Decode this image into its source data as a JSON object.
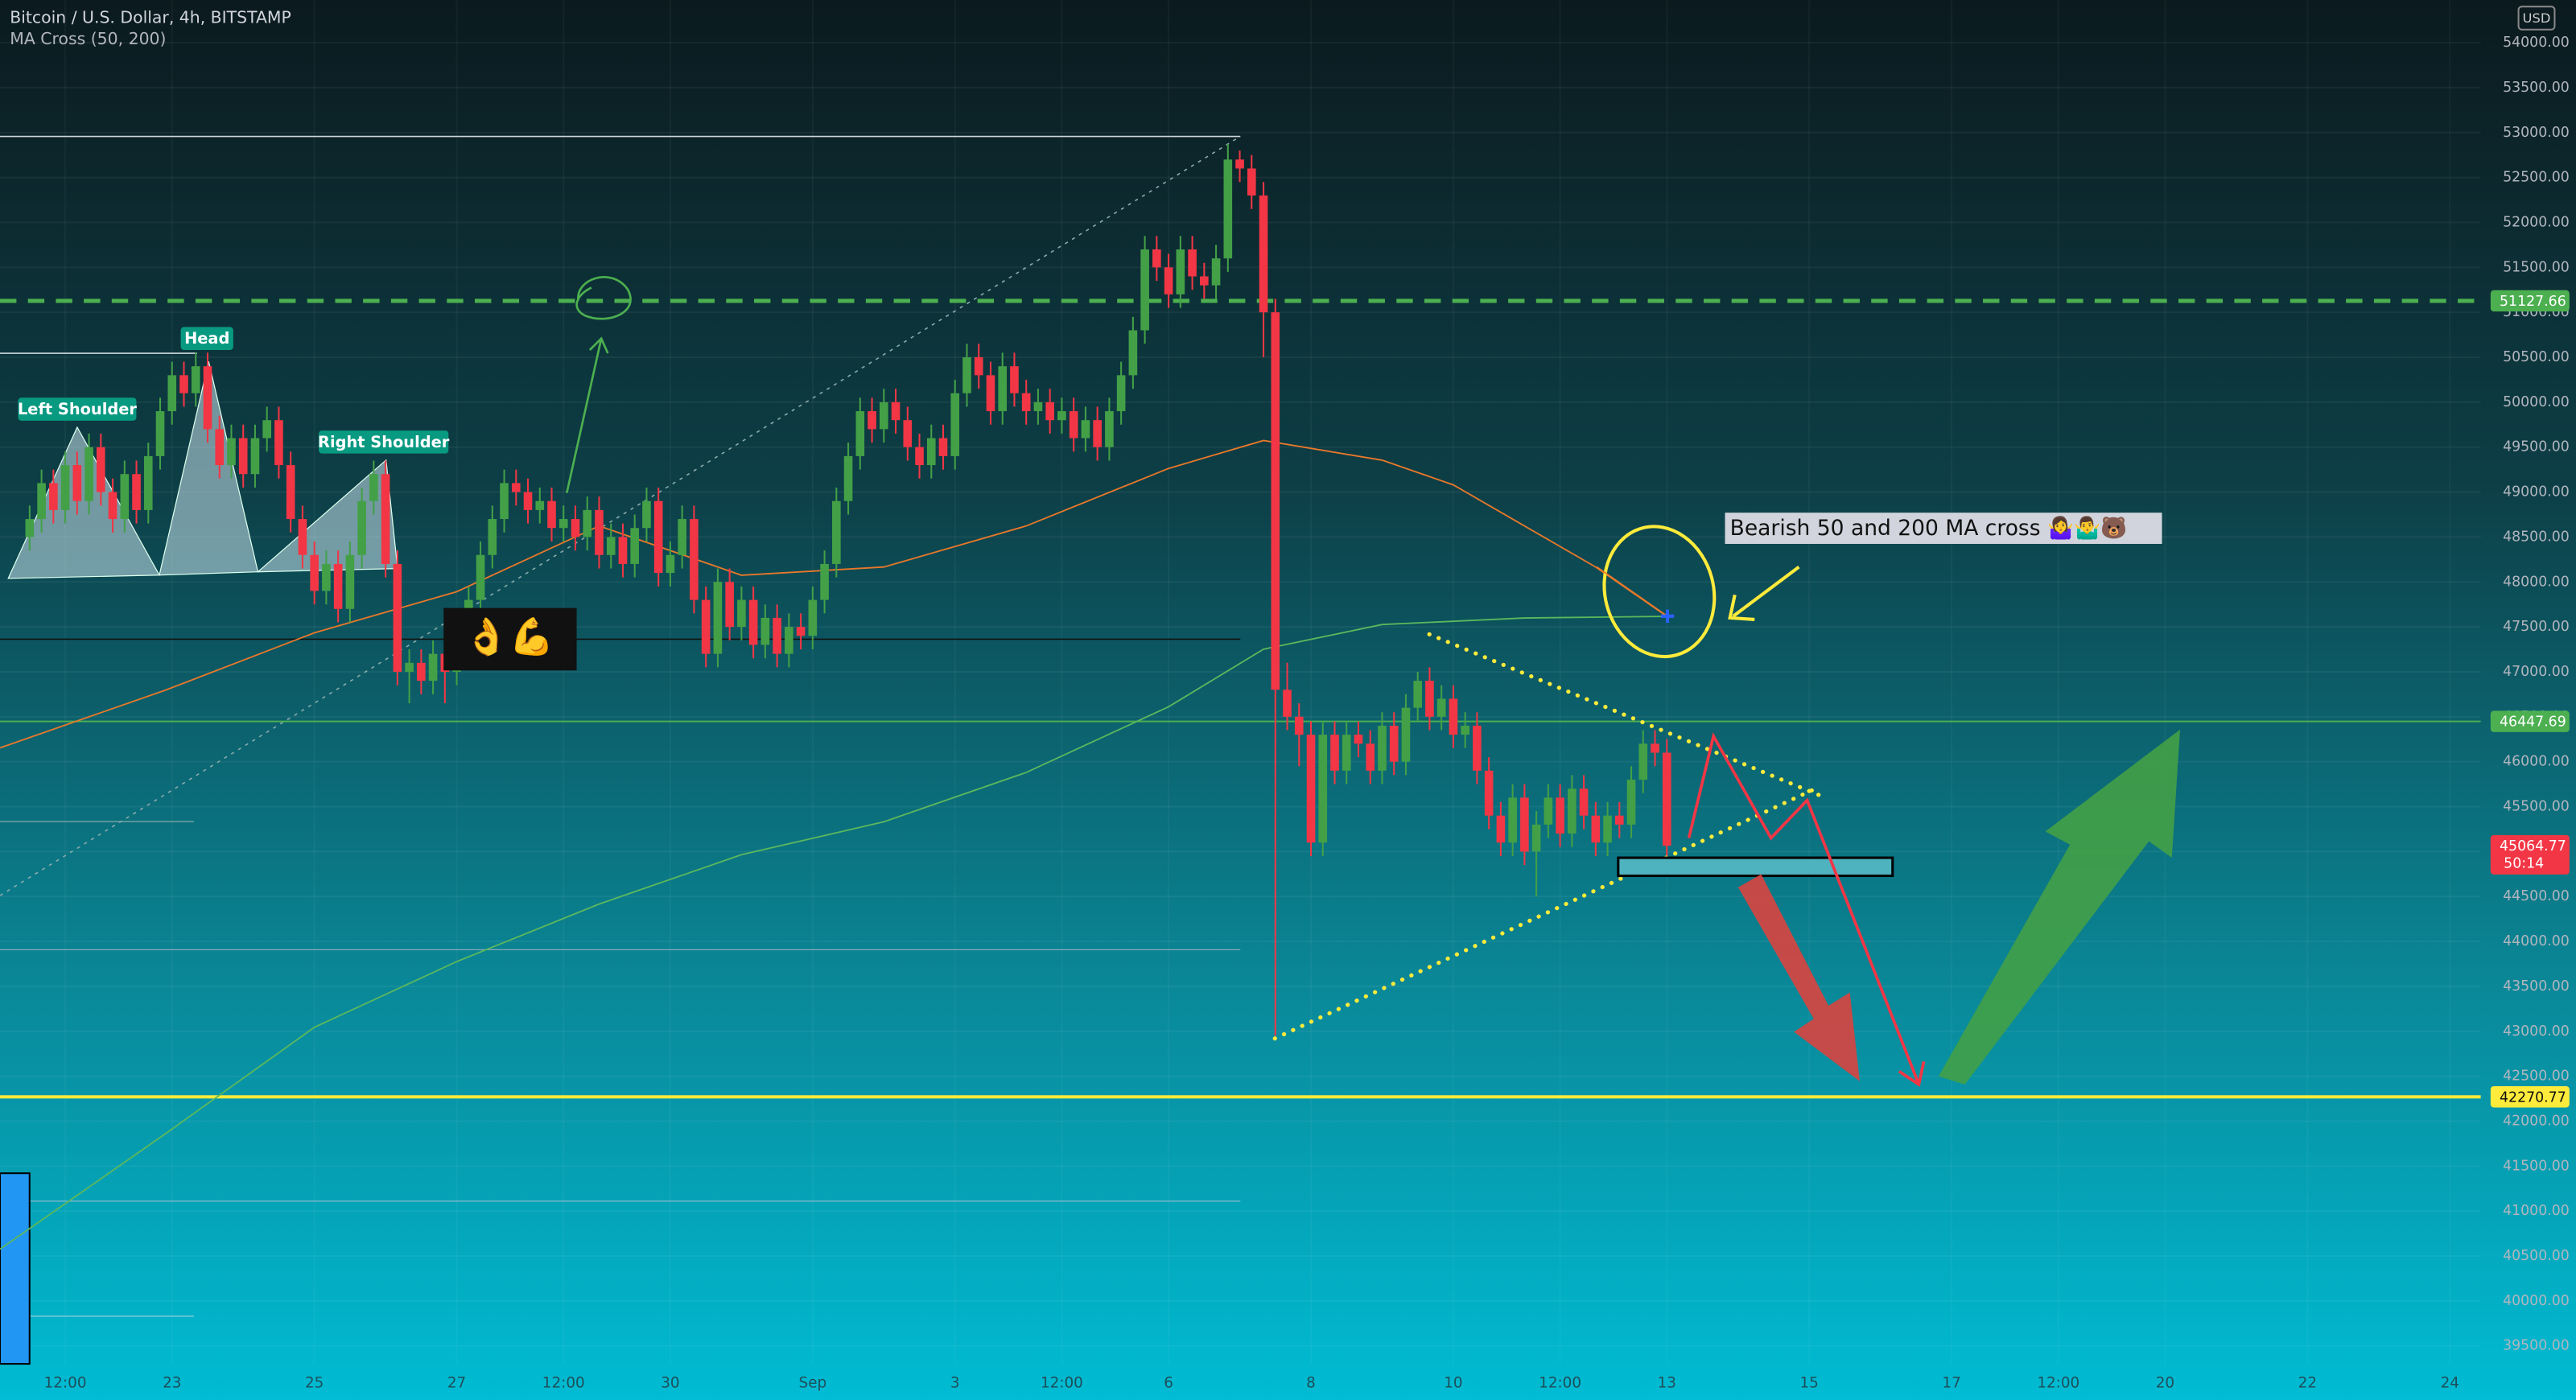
{
  "chart_data": {
    "type": "candlestick",
    "title": "Bitcoin / U.S. Dollar, 4h, BITSTAMP",
    "subtitle": "MA Cross (50, 200)",
    "currency": "USD",
    "countdown": "50:14",
    "up_color": "#43a047",
    "down_color": "#f23645",
    "candles": [
      [
        48500,
        48850,
        48350,
        48700
      ],
      [
        48700,
        49250,
        48550,
        49100
      ],
      [
        49100,
        49250,
        48650,
        48800
      ],
      [
        48800,
        49450,
        48650,
        49300
      ],
      [
        49300,
        49450,
        48750,
        48900
      ],
      [
        48900,
        49650,
        48750,
        49500
      ],
      [
        49500,
        49650,
        48850,
        49000
      ],
      [
        49000,
        49150,
        48550,
        48700
      ],
      [
        48700,
        49350,
        48550,
        49200
      ],
      [
        49200,
        49350,
        48650,
        48800
      ],
      [
        48800,
        49550,
        48650,
        49400
      ],
      [
        49400,
        50050,
        49250,
        49900
      ],
      [
        49900,
        50450,
        49750,
        50300
      ],
      [
        50300,
        50450,
        49950,
        50100
      ],
      [
        50100,
        50550,
        49950,
        50400
      ],
      [
        50400,
        50550,
        49550,
        49700
      ],
      [
        49700,
        49850,
        49150,
        49300
      ],
      [
        49300,
        49750,
        49150,
        49600
      ],
      [
        49600,
        49750,
        49050,
        49200
      ],
      [
        49200,
        49750,
        49050,
        49600
      ],
      [
        49600,
        49950,
        49450,
        49800
      ],
      [
        49800,
        49950,
        49150,
        49300
      ],
      [
        49300,
        49450,
        48550,
        48700
      ],
      [
        48700,
        48850,
        48150,
        48300
      ],
      [
        48300,
        48450,
        47750,
        47900
      ],
      [
        47900,
        48350,
        47750,
        48200
      ],
      [
        48200,
        48350,
        47550,
        47700
      ],
      [
        47700,
        48450,
        47550,
        48300
      ],
      [
        48300,
        49050,
        48150,
        48900
      ],
      [
        48900,
        49350,
        48750,
        49200
      ],
      [
        49200,
        49350,
        48050,
        48200
      ],
      [
        48200,
        48350,
        46850,
        47000
      ],
      [
        47000,
        47250,
        46650,
        47100
      ],
      [
        47100,
        47250,
        46750,
        46900
      ],
      [
        46900,
        47350,
        46750,
        47200
      ],
      [
        47200,
        47350,
        46650,
        47000
      ],
      [
        47000,
        47550,
        46850,
        47400
      ],
      [
        47400,
        47950,
        47250,
        47800
      ],
      [
        47800,
        48450,
        47650,
        48300
      ],
      [
        48300,
        48850,
        48150,
        48700
      ],
      [
        48700,
        49250,
        48550,
        49100
      ],
      [
        49100,
        49250,
        48850,
        49000
      ],
      [
        49000,
        49150,
        48650,
        48800
      ],
      [
        48800,
        49050,
        48650,
        48900
      ],
      [
        48900,
        49050,
        48450,
        48600
      ],
      [
        48600,
        48850,
        48450,
        48700
      ],
      [
        48700,
        48850,
        48350,
        48500
      ],
      [
        48500,
        48950,
        48350,
        48800
      ],
      [
        48800,
        48950,
        48150,
        48300
      ],
      [
        48300,
        48650,
        48150,
        48500
      ],
      [
        48500,
        48650,
        48050,
        48200
      ],
      [
        48200,
        48750,
        48050,
        48600
      ],
      [
        48600,
        49050,
        48450,
        48900
      ],
      [
        48900,
        49050,
        47950,
        48100
      ],
      [
        48100,
        48450,
        47950,
        48300
      ],
      [
        48300,
        48850,
        48150,
        48700
      ],
      [
        48700,
        48850,
        47650,
        47800
      ],
      [
        47800,
        47950,
        47050,
        47200
      ],
      [
        47200,
        48150,
        47050,
        48000
      ],
      [
        48000,
        48150,
        47350,
        47500
      ],
      [
        47500,
        47950,
        47350,
        47800
      ],
      [
        47800,
        47950,
        47150,
        47300
      ],
      [
        47300,
        47750,
        47150,
        47600
      ],
      [
        47600,
        47750,
        47050,
        47200
      ],
      [
        47200,
        47650,
        47050,
        47500
      ],
      [
        47500,
        47650,
        47250,
        47400
      ],
      [
        47400,
        47950,
        47250,
        47800
      ],
      [
        47800,
        48350,
        47650,
        48200
      ],
      [
        48200,
        49050,
        48050,
        48900
      ],
      [
        48900,
        49550,
        48750,
        49400
      ],
      [
        49400,
        50050,
        49250,
        49900
      ],
      [
        49900,
        50050,
        49550,
        49700
      ],
      [
        49700,
        50150,
        49550,
        50000
      ],
      [
        50000,
        50150,
        49650,
        49800
      ],
      [
        49800,
        49950,
        49350,
        49500
      ],
      [
        49500,
        49650,
        49150,
        49300
      ],
      [
        49300,
        49750,
        49150,
        49600
      ],
      [
        49600,
        49750,
        49250,
        49400
      ],
      [
        49400,
        50250,
        49250,
        50100
      ],
      [
        50100,
        50650,
        49950,
        50500
      ],
      [
        50500,
        50650,
        50150,
        50300
      ],
      [
        50300,
        50450,
        49750,
        49900
      ],
      [
        49900,
        50550,
        49750,
        50400
      ],
      [
        50400,
        50550,
        49950,
        50100
      ],
      [
        50100,
        50250,
        49750,
        49900
      ],
      [
        49900,
        50150,
        49750,
        50000
      ],
      [
        50000,
        50150,
        49650,
        49800
      ],
      [
        49800,
        50050,
        49650,
        49900
      ],
      [
        49900,
        50050,
        49450,
        49600
      ],
      [
        49600,
        49950,
        49450,
        49800
      ],
      [
        49800,
        49950,
        49350,
        49500
      ],
      [
        49500,
        50050,
        49350,
        49900
      ],
      [
        49900,
        50450,
        49750,
        50300
      ],
      [
        50300,
        50950,
        50150,
        50800
      ],
      [
        50800,
        51850,
        50650,
        51700
      ],
      [
        51700,
        51850,
        51350,
        51500
      ],
      [
        51500,
        51650,
        51050,
        51200
      ],
      [
        51200,
        51850,
        51050,
        51700
      ],
      [
        51700,
        51850,
        51250,
        51400
      ],
      [
        51400,
        51550,
        51150,
        51300
      ],
      [
        51300,
        51750,
        51150,
        51600
      ],
      [
        51600,
        52870,
        51450,
        52700
      ],
      [
        52700,
        52800,
        52450,
        52600
      ],
      [
        52600,
        52750,
        52150,
        52300
      ],
      [
        52300,
        52450,
        50500,
        51000
      ],
      [
        51000,
        51150,
        42950,
        46800
      ],
      [
        46800,
        47100,
        46350,
        46500
      ],
      [
        46500,
        46650,
        45950,
        46300
      ],
      [
        46300,
        46450,
        44950,
        45100
      ],
      [
        45100,
        46450,
        44950,
        46300
      ],
      [
        46300,
        46450,
        45750,
        45900
      ],
      [
        45900,
        46450,
        45750,
        46300
      ],
      [
        46300,
        46450,
        46050,
        46200
      ],
      [
        46200,
        46350,
        45750,
        45900
      ],
      [
        45900,
        46550,
        45750,
        46400
      ],
      [
        46400,
        46550,
        45850,
        46000
      ],
      [
        46000,
        46750,
        45850,
        46600
      ],
      [
        46600,
        47000,
        46450,
        46900
      ],
      [
        46900,
        47050,
        46350,
        46500
      ],
      [
        46500,
        46850,
        46350,
        46700
      ],
      [
        46700,
        46850,
        46150,
        46300
      ],
      [
        46300,
        46550,
        46150,
        46400
      ],
      [
        46400,
        46550,
        45750,
        45900
      ],
      [
        45900,
        46050,
        45250,
        45400
      ],
      [
        45400,
        45550,
        44950,
        45100
      ],
      [
        45100,
        45750,
        44950,
        45600
      ],
      [
        45600,
        45750,
        44850,
        45000
      ],
      [
        45000,
        45450,
        44500,
        45300
      ],
      [
        45300,
        45750,
        45150,
        45600
      ],
      [
        45600,
        45750,
        45050,
        45200
      ],
      [
        45200,
        45850,
        45050,
        45700
      ],
      [
        45700,
        45850,
        45250,
        45400
      ],
      [
        45400,
        45550,
        44950,
        45100
      ],
      [
        45100,
        45550,
        44950,
        45400
      ],
      [
        45400,
        45550,
        45150,
        45300
      ],
      [
        45300,
        45950,
        45150,
        45800
      ],
      [
        45800,
        46350,
        45650,
        46200
      ],
      [
        46200,
        46350,
        45950,
        46100
      ],
      [
        46100,
        46250,
        44950,
        45064.77
      ]
    ],
    "series": [
      {
        "name": "MA 50",
        "color": "#e8782a",
        "x": [
          -2.5,
          11.4,
          24,
          36,
          48,
          60,
          72,
          84,
          96,
          104,
          114,
          120,
          126,
          132,
          138
        ],
        "values": [
          46154,
          46794,
          47434,
          47892,
          48623,
          48075,
          48166,
          48623,
          49263,
          49574,
          49355,
          49080,
          48623,
          48166,
          47617
        ]
      },
      {
        "name": "MA 200",
        "color": "#5bb85d",
        "x": [
          -2.5,
          11.4,
          24,
          36,
          48,
          60,
          72,
          84,
          96,
          104,
          114,
          126,
          138
        ],
        "values": [
          40576,
          41856,
          43045,
          43776,
          44416,
          44965,
          45331,
          45880,
          46611,
          47252,
          47526,
          47599,
          47617
        ]
      }
    ],
    "hlines": [
      {
        "value": 51127.66,
        "color": "#4caf50",
        "style": "dashed"
      },
      {
        "value": 46447.69,
        "color": "#4caf50",
        "style": "solid"
      },
      {
        "value": 42270.77,
        "color": "#ffeb3b",
        "style": "solid"
      },
      {
        "value": 45064.77,
        "color": "#f23645",
        "style": "none"
      }
    ],
    "xlim": [
      -2.5,
      206.6
    ],
    "xticks": [
      {
        "value": 3,
        "label": "12:00"
      },
      {
        "value": 12,
        "label": "23"
      },
      {
        "value": 24,
        "label": "25"
      },
      {
        "value": 36,
        "label": "27"
      },
      {
        "value": 45,
        "label": "12:00"
      },
      {
        "value": 54,
        "label": "30"
      },
      {
        "value": 66,
        "label": "Sep"
      },
      {
        "value": 78,
        "label": "3"
      },
      {
        "value": 87,
        "label": "12:00"
      },
      {
        "value": 96,
        "label": "6"
      },
      {
        "value": 108,
        "label": "8"
      },
      {
        "value": 120,
        "label": "10"
      },
      {
        "value": 129,
        "label": "12:00"
      },
      {
        "value": 138,
        "label": "13"
      },
      {
        "value": 150,
        "label": "15"
      },
      {
        "value": 162,
        "label": "17"
      },
      {
        "value": 171,
        "label": "12:00"
      },
      {
        "value": 180,
        "label": "20"
      },
      {
        "value": 192,
        "label": "22"
      },
      {
        "value": 204,
        "label": "24"
      }
    ],
    "ylim": [
      39300,
      54475
    ],
    "yticks": [
      {
        "value": 39500,
        "label": "39500.00"
      },
      {
        "value": 40000,
        "label": "40000.00"
      },
      {
        "value": 40500,
        "label": "40500.00"
      },
      {
        "value": 41000,
        "label": "41000.00"
      },
      {
        "value": 41500,
        "label": "41500.00"
      },
      {
        "value": 42000,
        "label": "42000.00"
      },
      {
        "value": 42500,
        "label": "42500.00"
      },
      {
        "value": 43000,
        "label": "43000.00"
      },
      {
        "value": 43500,
        "label": "43500.00"
      },
      {
        "value": 44000,
        "label": "44000.00"
      },
      {
        "value": 44500,
        "label": "44500.00"
      },
      {
        "value": 45000,
        "label": "45000.00"
      },
      {
        "value": 45500,
        "label": "45500.00"
      },
      {
        "value": 46000,
        "label": "46000.00"
      },
      {
        "value": 46500,
        "label": "46500.00"
      },
      {
        "value": 47000,
        "label": "47000.00"
      },
      {
        "value": 47500,
        "label": "47500.00"
      },
      {
        "value": 48000,
        "label": "48000.00"
      },
      {
        "value": 48500,
        "label": "48500.00"
      },
      {
        "value": 49000,
        "label": "49000.00"
      },
      {
        "value": 49500,
        "label": "49500.00"
      },
      {
        "value": 50000,
        "label": "50000.00"
      },
      {
        "value": 50500,
        "label": "50500.00"
      },
      {
        "value": 51000,
        "label": "51000.00"
      },
      {
        "value": 51500,
        "label": "51500.00"
      },
      {
        "value": 52000,
        "label": "52000.00"
      },
      {
        "value": 52500,
        "label": "52500.00"
      },
      {
        "value": 53000,
        "label": "53000.00"
      },
      {
        "value": 53500,
        "label": "53500.00"
      },
      {
        "value": 54000,
        "label": "54000.00"
      }
    ],
    "grid": true,
    "annotations": [
      "Left Shoulder",
      "Head",
      "Right Shoulder",
      "Bearish 50 and 200 MA cross 🤷‍♀️🤷‍♂️🐻",
      "👌💪"
    ]
  }
}
